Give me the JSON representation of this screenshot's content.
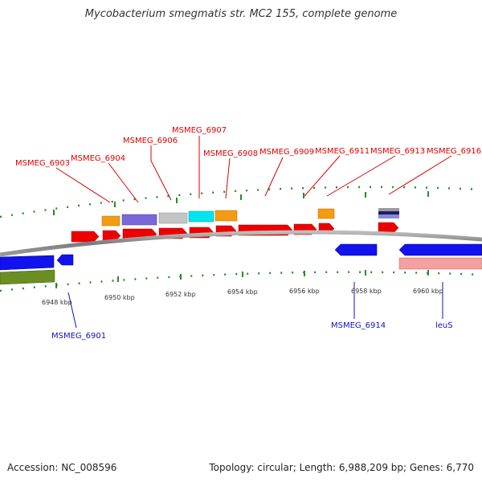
{
  "title": "Mycobacterium smegmatis str. MC2 155, complete genome",
  "accession": "Accession: NC_008596",
  "summary": "Topology: circular; Length: 6,988,209 bp; Genes: 6,770",
  "colors": {
    "forward_label": "#dd0000",
    "reverse_label": "#1111bb",
    "tick": "#2a8a2a",
    "backbone": "#8a8a8a"
  },
  "scale": {
    "tick_labels": [
      "6948 kbp",
      "6950 kbp",
      "6952 kbp",
      "6954 kbp",
      "6956 kbp",
      "6958 kbp",
      "6960 kbp"
    ]
  },
  "forward_labels": [
    "MSMEG_6903",
    "MSMEG_6904",
    "MSMEG_6906",
    "MSMEG_6907",
    "MSMEG_6908",
    "MSMEG_6909",
    "MSMEG_6911",
    "MSMEG_6913",
    "MSMEG_6916"
  ],
  "reverse_labels": [
    "MSMEG_6901",
    "MSMEG_6914",
    "leuS"
  ]
}
